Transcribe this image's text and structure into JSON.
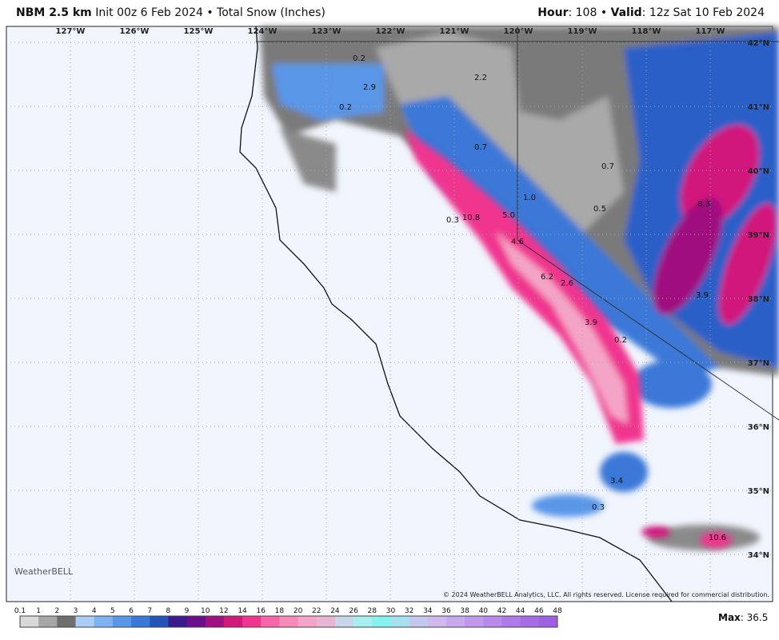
{
  "header": {
    "model": "NBM 2.5 km",
    "init": "Init 00z 6 Feb 2024 • Total Snow (Inches)",
    "hour_label": "Hour",
    "hour": ": 108 • ",
    "valid_label": "Valid",
    "valid": ": 12z Sat 10 Feb 2024"
  },
  "map": {
    "lon_labels": [
      "127°W",
      "126°W",
      "125°W",
      "124°W",
      "123°W",
      "122°W",
      "121°W",
      "120°W",
      "119°W",
      "118°W",
      "117°W"
    ],
    "lat_labels": [
      "42°N",
      "41°N",
      "40°N",
      "39°N",
      "38°N",
      "37°N",
      "36°N",
      "35°N",
      "34°N"
    ],
    "point_labels": [
      "0.2",
      "2.2",
      "2.9",
      "0.2",
      "0.7",
      "0.7",
      "1.0",
      "0.5",
      "8.3",
      "0.3",
      "10.8",
      "5.0",
      "4.6",
      "6.2",
      "2.6",
      "3.9",
      "3.9",
      "0.2",
      "3.4",
      "0.3",
      "10.6"
    ],
    "logo": "WeatherBELL",
    "copyright": "© 2024 WeatherBELL Analytics, LLC. All rights reserved. License required for commercial distribution."
  },
  "legend": {
    "levels": [
      "0.1",
      "1",
      "2",
      "3",
      "4",
      "5",
      "6",
      "7",
      "8",
      "9",
      "10",
      "12",
      "14",
      "16",
      "18",
      "20",
      "22",
      "24",
      "26",
      "28",
      "30",
      "32",
      "34",
      "36",
      "38",
      "40",
      "42",
      "44",
      "46",
      "48"
    ],
    "colors": [
      "#d9d9d9",
      "#a6a6a6",
      "#6e6e6e",
      "#a9cdf5",
      "#7fb2f0",
      "#5a96e8",
      "#3b78d8",
      "#2356b8",
      "#3a1a8c",
      "#6a0f8a",
      "#a0117f",
      "#d1187c",
      "#f0368f",
      "#f766a8",
      "#f78ab8",
      "#f4a5c7",
      "#e7b6d2",
      "#c8d6ec",
      "#a8eef0",
      "#86f2f0",
      "#a7e0f0",
      "#c4c8f0",
      "#d0b8ef",
      "#c9a8ee",
      "#c198ec",
      "#b889ea",
      "#b07ae8",
      "#a86be6",
      "#a060e4"
    ],
    "max_label": "Max",
    "max": ": 36.5"
  }
}
